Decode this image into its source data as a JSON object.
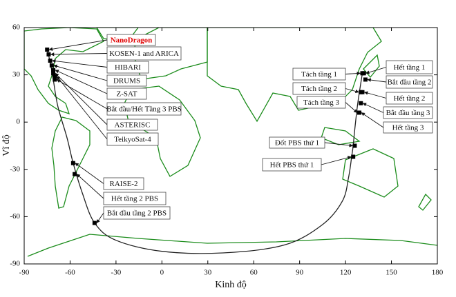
{
  "chart_data": {
    "type": "trajectory-map",
    "x_label": "Kinh độ",
    "y_label": "Vĩ độ",
    "xlim": [
      -90,
      180
    ],
    "xticks": [
      -90,
      -60,
      -30,
      0,
      30,
      60,
      90,
      120,
      150,
      180
    ],
    "ylim": [
      -90,
      60
    ],
    "yticks": [
      -90,
      -60,
      -30,
      0,
      30,
      60
    ],
    "line_color": "#222222",
    "marker_color": "#000000",
    "trajectory": {
      "x": [
        131,
        128,
        126,
        125,
        124,
        122,
        118,
        105,
        80,
        40,
        0,
        -30,
        -44,
        -52,
        -58,
        -62,
        -68,
        -71,
        -73,
        -75
      ],
      "y": [
        31,
        12,
        -5,
        -15,
        -22,
        -35,
        -50,
        -65,
        -78,
        -83,
        -82,
        -75,
        -64,
        -45,
        -26,
        -10,
        10,
        27,
        38,
        46
      ]
    },
    "events": [
      {
        "label": "NanoDragon",
        "x": -75,
        "y": 46,
        "color": "#e00000"
      },
      {
        "label": "KOSEN-1 and ARICA",
        "x": -74,
        "y": 43,
        "color": "#111111"
      },
      {
        "label": "HIBARI",
        "x": -73,
        "y": 39,
        "color": "#111111"
      },
      {
        "label": "DRUMS",
        "x": -72,
        "y": 36,
        "color": "#111111"
      },
      {
        "label": "Z-SAT",
        "x": -71,
        "y": 33,
        "color": "#111111"
      },
      {
        "label": "Bắt đầu/Hết Tầng 3 PBS",
        "x": -70,
        "y": 27,
        "color": "#111111"
      },
      {
        "label": "ASTERISC",
        "x": -71,
        "y": 31,
        "color": "#111111"
      },
      {
        "label": "TeikyoSat-4",
        "x": -70,
        "y": 29,
        "color": "#111111"
      },
      {
        "label": "RAISE-2",
        "x": -58,
        "y": -26,
        "color": "#111111"
      },
      {
        "label": "Hết tầng 2 PBS",
        "x": -57,
        "y": -33,
        "color": "#111111"
      },
      {
        "label": "Bắt đầu tầng 2 PBS",
        "x": -44,
        "y": -64,
        "color": "#111111"
      },
      {
        "label": "Tách tầng 1",
        "x": 131,
        "y": 31,
        "color": "#111111"
      },
      {
        "label": "Tách tầng 2",
        "x": 130,
        "y": 19,
        "color": "#111111"
      },
      {
        "label": "Tách tầng 3",
        "x": 129,
        "y": 6,
        "color": "#111111"
      },
      {
        "label": "Hết tầng 1",
        "x": 132,
        "y": 31,
        "color": "#111111"
      },
      {
        "label": "Bắt đầu tầng 2",
        "x": 133,
        "y": 27,
        "color": "#111111"
      },
      {
        "label": "Hết tầng 2",
        "x": 131,
        "y": 19,
        "color": "#111111"
      },
      {
        "label": "Bắt đầu tầng 3",
        "x": 130,
        "y": 12,
        "color": "#111111"
      },
      {
        "label": "Hết tầng 3",
        "x": 129,
        "y": 6,
        "color": "#111111"
      },
      {
        "label": "Đốt PBS thứ 1",
        "x": 126,
        "y": -15,
        "color": "#111111"
      },
      {
        "label": "Hết PBS thứ 1",
        "x": 125,
        "y": -22,
        "color": "#111111"
      }
    ]
  }
}
